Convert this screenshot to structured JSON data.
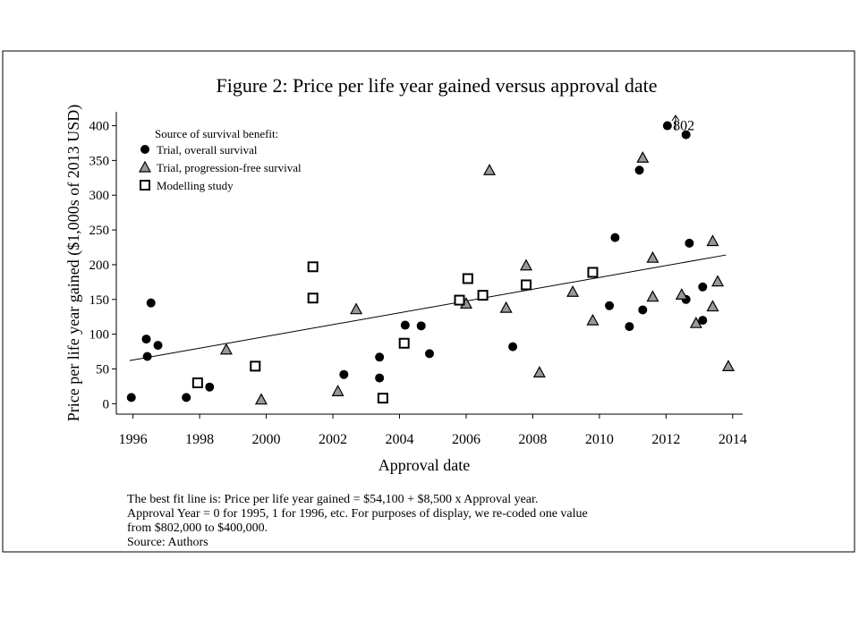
{
  "chart_data": {
    "type": "scatter",
    "title": "Figure 2: Price per life year gained versus approval date",
    "x_label": "Approval date",
    "y_label": "Price per life year gained ($1,000s of 2013 USD)",
    "xlim": [
      1995.5,
      2014.3
    ],
    "ylim": [
      -15,
      420
    ],
    "xticks": [
      1996,
      1998,
      2000,
      2002,
      2004,
      2006,
      2008,
      2010,
      2012,
      2014
    ],
    "yticks": [
      0,
      50,
      100,
      150,
      200,
      250,
      300,
      350,
      400
    ],
    "legend_title": "Source of survival benefit:",
    "series": [
      {
        "name": "Trial, overall survival",
        "marker": "circle",
        "color": "#000000",
        "x": [
          1995.95,
          1996.43,
          1996.4,
          1996.54,
          1996.75,
          1997.6,
          1998.3,
          2002.33,
          2003.4,
          2003.4,
          2004.17,
          2004.65,
          2004.9,
          2007.4,
          2010.3,
          2010.47,
          2010.9,
          2011.2,
          2011.3,
          2012.04,
          2012.6,
          2012.6,
          2012.7,
          2013.1,
          2013.1
        ],
        "values": [
          9,
          68,
          93,
          145,
          84,
          9,
          24,
          42,
          67,
          37,
          113,
          112,
          72,
          82,
          141,
          239,
          111,
          336,
          135,
          400,
          387,
          150,
          231,
          168,
          120
        ]
      },
      {
        "name": "Trial, progression-free survival",
        "marker": "triangle",
        "color": "#999999",
        "x": [
          1998.8,
          1999.85,
          2002.15,
          2002.7,
          2006.7,
          2006.0,
          2007.2,
          2007.8,
          2008.2,
          2009.2,
          2009.8,
          2011.3,
          2011.6,
          2011.6,
          2012.47,
          2012.9,
          2013.4,
          2013.4,
          2013.55,
          2013.87
        ],
        "values": [
          78,
          6,
          18,
          136,
          336,
          144,
          138,
          199,
          45,
          161,
          120,
          354,
          210,
          154,
          157,
          116,
          234,
          140,
          176,
          54
        ]
      },
      {
        "name": "Modelling study",
        "marker": "square",
        "color": "#ffffff",
        "x": [
          1997.94,
          1999.67,
          2001.4,
          2001.4,
          2003.5,
          2004.14,
          2005.8,
          2006.05,
          2006.5,
          2007.8,
          2009.8
        ],
        "values": [
          30,
          54,
          197,
          152,
          8,
          87,
          149,
          180,
          156,
          171,
          189
        ]
      }
    ],
    "fit_line": {
      "x": [
        1995.9,
        2013.8
      ],
      "values": [
        62,
        214
      ]
    },
    "annotation": {
      "text": "802",
      "x": 2012.1,
      "y": 400
    },
    "notes": [
      "The best fit line is: Price per life year gained = $54,100 + $8,500 x Approval year.",
      "Approval Year = 0 for 1995, 1 for 1996, etc. For purposes of display, we re-coded one value",
      "from $802,000 to $400,000.",
      "Source: Authors"
    ]
  }
}
